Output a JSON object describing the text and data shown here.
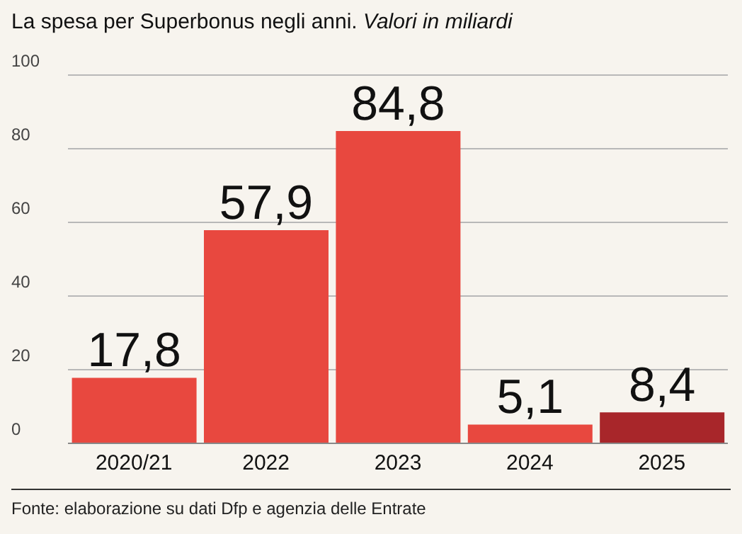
{
  "chart_data": {
    "type": "bar",
    "title": "La spesa per Superbonus negli anni.",
    "subtitle": "Valori in miliardi",
    "categories": [
      "2020/21",
      "2022",
      "2023",
      "2024",
      "2025"
    ],
    "values": [
      17.8,
      57.9,
      84.8,
      5.1,
      8.4
    ],
    "value_labels": [
      "17,8",
      "57,9",
      "84,8",
      "5,1",
      "8,4"
    ],
    "colors": [
      "#e8483f",
      "#e8483f",
      "#e8483f",
      "#e8483f",
      "#a8262a"
    ],
    "ylim": [
      0,
      100
    ],
    "yticks": [
      0,
      20,
      40,
      60,
      80,
      100
    ],
    "grid": "y",
    "annotations": [
      "Fonte: elaborazione su dati Dfp e agenzia delle Entrate"
    ]
  }
}
